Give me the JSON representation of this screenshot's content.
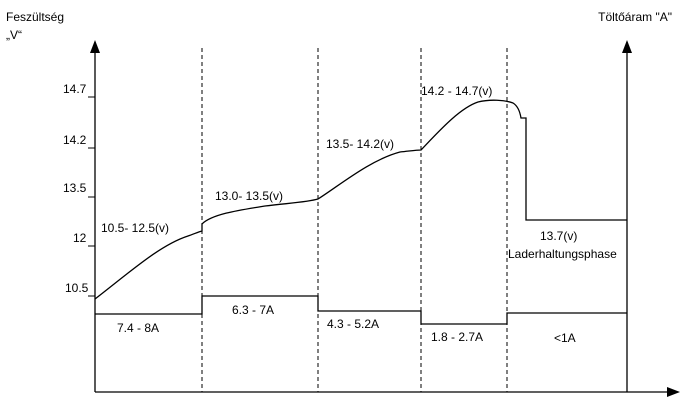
{
  "axes": {
    "left_title_line1": "Feszültség",
    "left_title_line2": "„V“",
    "right_title": "Töltőáram \"A\""
  },
  "y_ticks": [
    "14.7",
    "14.2",
    "13.5",
    "12",
    "10.5"
  ],
  "voltage_labels": [
    "10.5- 12.5(v)",
    "13.0- 13.5(v)",
    "13.5- 14.2(v)",
    "14.2 - 14.7(v)"
  ],
  "float_stage": {
    "voltage": "13.7(v)",
    "name": "Laderhaltungsphase"
  },
  "current_labels": [
    "7.4 - 8A",
    "6.3 - 7A",
    "4.3 - 5.2A",
    "1.8 - 2.7A",
    "<1A"
  ]
}
